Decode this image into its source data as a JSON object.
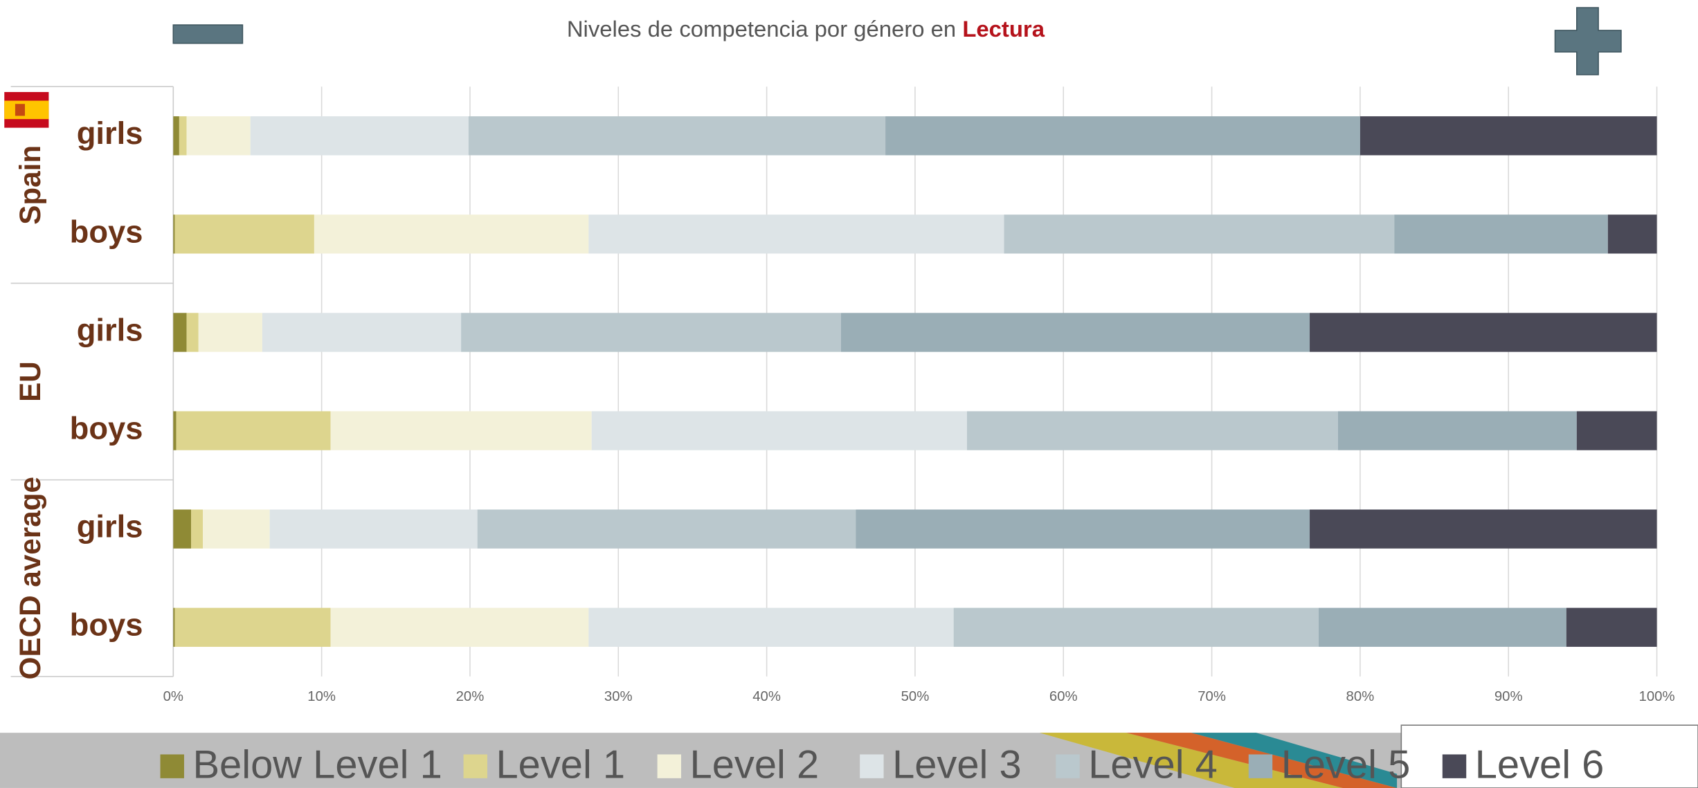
{
  "chart_data": {
    "type": "stacked-barh",
    "title": "Niveles de competencia por género en",
    "subject": "Lectura",
    "categories": [
      "girls",
      "boys",
      "girls",
      "boys",
      "girls",
      "boys"
    ],
    "groups": [
      {
        "name": "Spain",
        "span": 2
      },
      {
        "name": "EU",
        "span": 2
      },
      {
        "name": "OECD average",
        "span": 2
      }
    ],
    "series": [
      {
        "name": "Below Level 1",
        "color": "#8f8a35",
        "values": [
          0.4,
          0.1,
          0.9,
          0.2,
          1.2,
          0.1
        ]
      },
      {
        "name": "Level 1",
        "color": "#ddd58e",
        "values": [
          0.5,
          9.4,
          0.8,
          10.4,
          0.8,
          10.5
        ]
      },
      {
        "name": "Level 2",
        "color": "#f3f1d9",
        "values": [
          4.3,
          18.5,
          4.3,
          17.6,
          4.5,
          17.4
        ]
      },
      {
        "name": "Level 3",
        "color": "#dde4e7",
        "values": [
          14.7,
          28.0,
          13.4,
          25.3,
          14.0,
          24.6
        ]
      },
      {
        "name": "Level 4",
        "color": "#bac8cd",
        "values": [
          28.1,
          26.3,
          25.6,
          25.0,
          25.5,
          24.6
        ]
      },
      {
        "name": "Level 5",
        "color": "#9aaeb6",
        "values": [
          32.0,
          14.4,
          31.6,
          16.1,
          30.6,
          16.7
        ]
      },
      {
        "name": "Level 6",
        "color": "#4a4957",
        "values": [
          20.0,
          3.3,
          23.4,
          5.4,
          23.4,
          6.1
        ]
      }
    ],
    "xlim": [
      0,
      100
    ],
    "xticks": [
      {
        "value": 0,
        "label": "0%"
      },
      {
        "value": 10,
        "label": "10%"
      },
      {
        "value": 20,
        "label": "20%"
      },
      {
        "value": 30,
        "label": "30%"
      },
      {
        "value": 40,
        "label": "40%"
      },
      {
        "value": 50,
        "label": "50%"
      },
      {
        "value": 60,
        "label": "60%"
      },
      {
        "value": 70,
        "label": "70%"
      },
      {
        "value": 80,
        "label": "80%"
      },
      {
        "value": 90,
        "label": "90%"
      },
      {
        "value": 100,
        "label": "100%"
      }
    ],
    "grid": true
  }
}
